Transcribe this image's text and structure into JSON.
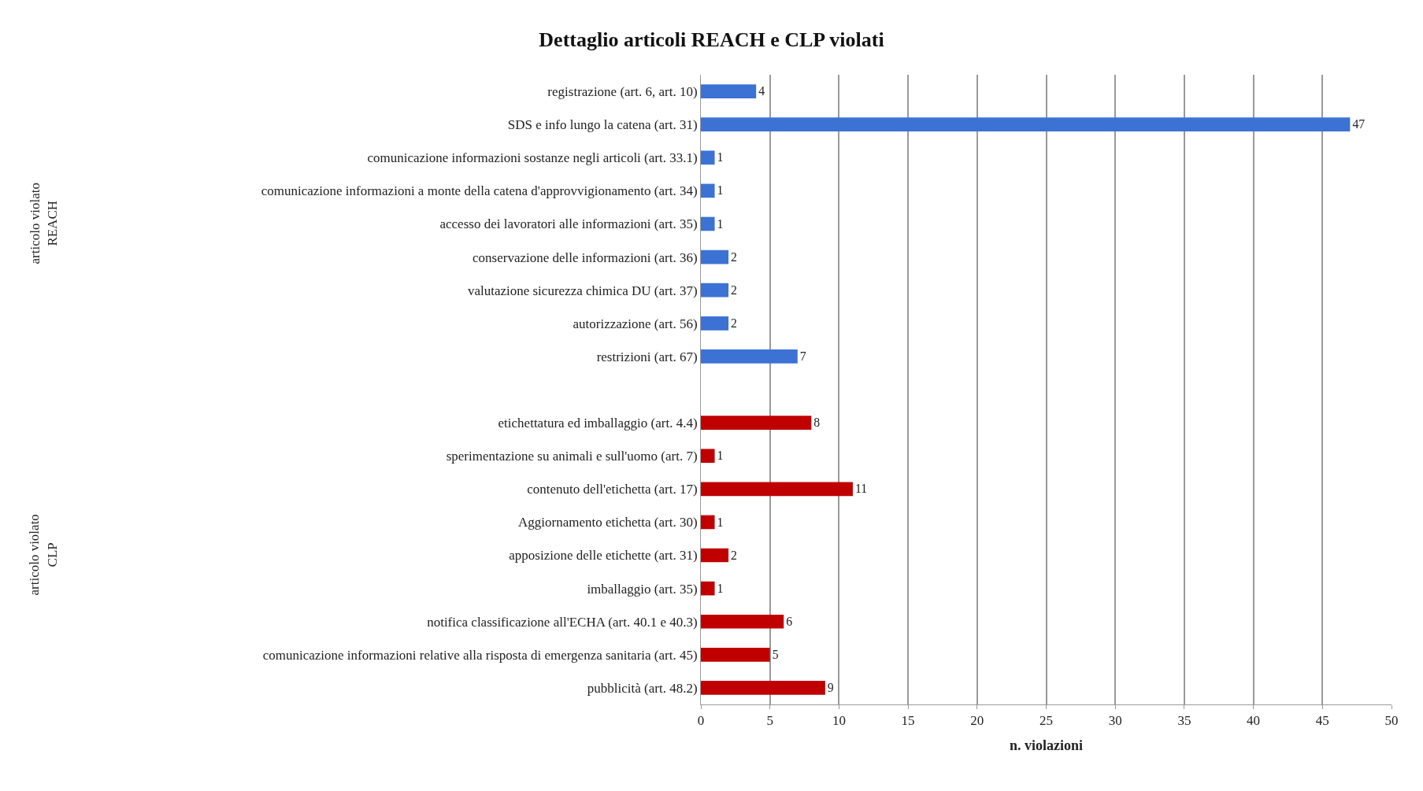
{
  "chart_data": {
    "type": "bar",
    "orientation": "horizontal",
    "title": "Dettaglio articoli REACH e CLP violati",
    "xlabel": "n. violazioni",
    "categories": [
      "registrazione (art. 6, art. 10)",
      "SDS e info lungo la catena (art. 31)",
      "comunicazione informazioni sostanze negli articoli (art. 33.1)",
      "comunicazione informazioni a monte della catena d'approvvigionamento (art. 34)",
      "accesso dei lavoratori alle informazioni (art. 35)",
      "conservazione delle informazioni (art. 36)",
      "valutazione sicurezza chimica DU (art. 37)",
      "autorizzazione (art. 56)",
      "restrizioni (art. 67)",
      null,
      "etichettatura ed imballaggio (art. 4.4)",
      "sperimentazione su animali e sull'uomo (art. 7)",
      "contenuto dell'etichetta (art. 17)",
      "Aggiornamento etichetta (art. 30)",
      "apposizione delle etichette (art. 31)",
      "imballaggio (art. 35)",
      "notifica classificazione all'ECHA (art. 40.1 e 40.3)",
      "comunicazione informazioni relative alla risposta di emergenza sanitaria (art. 45)",
      "pubblicità (art. 48.2)"
    ],
    "series": [
      {
        "color": "#3c72d4",
        "values": [
          4,
          47,
          1,
          1,
          1,
          2,
          2,
          2,
          7,
          null,
          null,
          null,
          null,
          null,
          null,
          null,
          null,
          null,
          null
        ]
      },
      {
        "color": "#c00000",
        "values": [
          null,
          null,
          null,
          null,
          null,
          null,
          null,
          null,
          null,
          null,
          8,
          1,
          11,
          1,
          2,
          1,
          6,
          5,
          9
        ]
      }
    ],
    "xlim": [
      0,
      50
    ],
    "xticks": [
      0,
      5,
      10,
      15,
      20,
      25,
      30,
      35,
      40,
      45,
      50
    ],
    "grid": "x",
    "data_labels": true,
    "annotations": [
      "articolo violato\nREACH",
      "articolo violato\nCLP"
    ]
  }
}
